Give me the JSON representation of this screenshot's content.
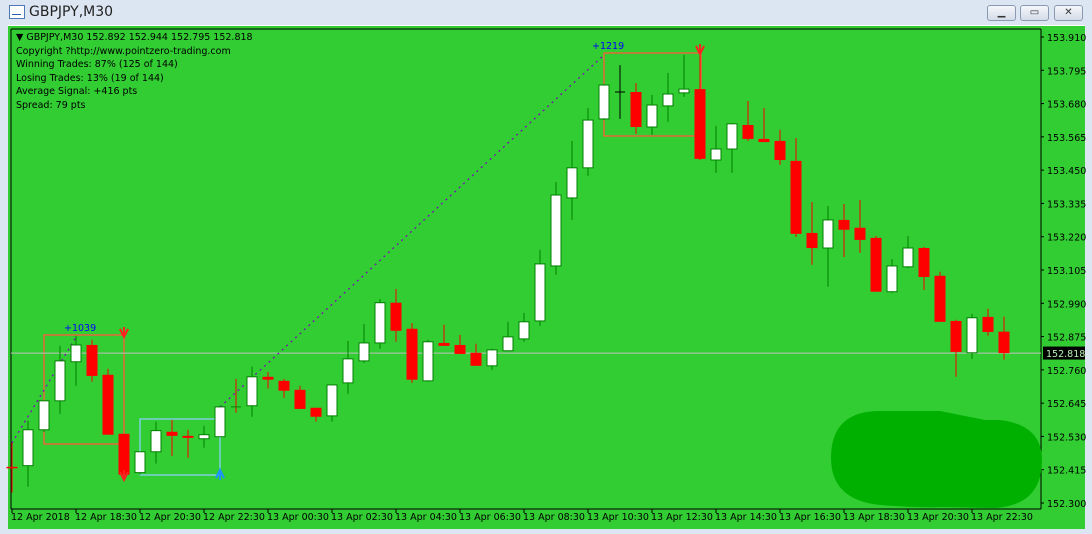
{
  "window": {
    "title": "GBPJPY,M30",
    "buttons": {
      "minimize": "minimize-icon",
      "restore": "restore-icon",
      "close": "close-icon"
    }
  },
  "info": {
    "header": "GBPJPY,M30  152.892 152.944 152.795 152.818",
    "lines": [
      "Copyright ?http://www.pointzero-trading.com",
      "Winning Trades: 87% (125 of 144)",
      "Losing Trades: 13% (19 of 144)",
      "Average Signal: +416 pts",
      "Spread: 79 pts"
    ]
  },
  "colors": {
    "background": "#32cd32",
    "bull_body": "#ffffff",
    "bull_outline": "#008000",
    "bear": "#ff0000",
    "signal_line": "#8000c0",
    "signal_label": "#0000ff",
    "bid_line": "#c0c0c0"
  },
  "signals": [
    {
      "label": "+1039",
      "direction": "sell",
      "box_color": "#ff5a3c"
    },
    {
      "label": "",
      "direction": "buy",
      "box_color": "#87cefa"
    },
    {
      "label": "+1219",
      "direction": "sell",
      "box_color": "#ff5a3c"
    }
  ],
  "chart_data": {
    "type": "candlestick",
    "symbol": "GBPJPY",
    "timeframe": "M30",
    "ylim": [
      152.3,
      153.91
    ],
    "y_ticks": [
      "153.910",
      "153.795",
      "153.680",
      "153.565",
      "153.450",
      "153.335",
      "153.220",
      "153.105",
      "152.990",
      "152.875",
      "152.760",
      "152.645",
      "152.530",
      "152.415",
      "152.300"
    ],
    "x_ticks": [
      "12 Apr 2018",
      "12 Apr 18:30",
      "12 Apr 20:30",
      "12 Apr 22:30",
      "13 Apr 00:30",
      "13 Apr 02:30",
      "13 Apr 04:30",
      "13 Apr 06:30",
      "13 Apr 08:30",
      "13 Apr 10:30",
      "13 Apr 12:30",
      "13 Apr 14:30",
      "13 Apr 16:30",
      "13 Apr 18:30",
      "13 Apr 20:30",
      "13 Apr 22:30"
    ],
    "current_price": "152.818",
    "ohlc": [
      [
        152.425,
        152.508,
        152.336,
        152.422
      ],
      [
        152.429,
        152.584,
        152.356,
        152.553
      ],
      [
        152.553,
        152.653,
        152.546,
        152.653
      ],
      [
        152.653,
        152.843,
        152.608,
        152.791
      ],
      [
        152.788,
        152.878,
        152.705,
        152.846
      ],
      [
        152.846,
        152.864,
        152.719,
        152.739
      ],
      [
        152.743,
        152.764,
        152.536,
        152.536
      ],
      [
        152.539,
        152.539,
        152.387,
        152.398
      ],
      [
        152.405,
        152.477,
        152.398,
        152.477
      ],
      [
        152.477,
        152.581,
        152.436,
        152.55
      ],
      [
        152.546,
        152.587,
        152.463,
        152.532
      ],
      [
        152.532,
        152.553,
        152.456,
        152.525
      ],
      [
        152.522,
        152.567,
        152.491,
        152.536
      ],
      [
        152.529,
        152.636,
        152.529,
        152.632
      ],
      [
        152.632,
        152.729,
        152.612,
        152.632
      ],
      [
        152.636,
        152.771,
        152.598,
        152.736
      ],
      [
        152.736,
        152.753,
        152.695,
        152.726
      ],
      [
        152.722,
        152.729,
        152.663,
        152.688
      ],
      [
        152.691,
        152.705,
        152.625,
        152.625
      ],
      [
        152.629,
        152.629,
        152.581,
        152.598
      ],
      [
        152.601,
        152.708,
        152.581,
        152.708
      ],
      [
        152.715,
        152.86,
        152.677,
        152.798
      ],
      [
        152.791,
        152.919,
        152.784,
        152.853
      ],
      [
        152.853,
        153.005,
        152.833,
        152.992
      ],
      [
        152.992,
        153.04,
        152.857,
        152.895
      ],
      [
        152.902,
        152.922,
        152.715,
        152.726
      ],
      [
        152.722,
        152.864,
        152.719,
        152.857
      ],
      [
        152.853,
        152.916,
        152.843,
        152.843
      ],
      [
        152.846,
        152.881,
        152.815,
        152.815
      ],
      [
        152.819,
        152.85,
        152.774,
        152.774
      ],
      [
        152.774,
        152.833,
        152.76,
        152.829
      ],
      [
        152.826,
        152.926,
        152.826,
        152.874
      ],
      [
        152.867,
        152.957,
        152.857,
        152.926
      ],
      [
        152.929,
        153.175,
        152.912,
        153.126
      ],
      [
        153.119,
        153.409,
        153.088,
        153.364
      ],
      [
        153.354,
        153.551,
        153.278,
        153.458
      ],
      [
        153.458,
        153.665,
        153.43,
        153.623
      ],
      [
        153.627,
        153.748,
        153.623,
        153.744
      ],
      [
        153.72,
        153.813,
        153.627,
        153.72
      ],
      [
        153.72,
        153.751,
        153.575,
        153.599
      ],
      [
        153.599,
        153.71,
        153.572,
        153.675
      ],
      [
        153.672,
        153.786,
        153.617,
        153.713
      ],
      [
        153.717,
        153.848,
        153.703,
        153.73
      ],
      [
        153.73,
        153.848,
        153.485,
        153.489
      ],
      [
        153.485,
        153.603,
        153.44,
        153.523
      ],
      [
        153.523,
        153.613,
        153.44,
        153.61
      ],
      [
        153.606,
        153.689,
        153.551,
        153.558
      ],
      [
        153.558,
        153.665,
        153.547,
        153.547
      ],
      [
        153.551,
        153.589,
        153.468,
        153.485
      ],
      [
        153.482,
        153.561,
        153.219,
        153.23
      ],
      [
        153.233,
        153.34,
        153.123,
        153.181
      ],
      [
        153.181,
        153.326,
        153.047,
        153.278
      ],
      [
        153.278,
        153.333,
        153.15,
        153.244
      ],
      [
        153.251,
        153.347,
        153.164,
        153.209
      ],
      [
        153.216,
        153.223,
        153.03,
        153.03
      ],
      [
        153.03,
        153.143,
        153.026,
        153.119
      ],
      [
        153.116,
        153.223,
        153.112,
        153.181
      ],
      [
        153.181,
        153.185,
        153.036,
        153.081
      ],
      [
        153.085,
        153.099,
        152.926,
        152.926
      ],
      [
        152.929,
        152.933,
        152.736,
        152.822
      ],
      [
        152.819,
        152.954,
        152.798,
        152.94
      ],
      [
        152.943,
        152.971,
        152.878,
        152.891
      ],
      [
        152.892,
        152.944,
        152.795,
        152.818
      ]
    ]
  }
}
